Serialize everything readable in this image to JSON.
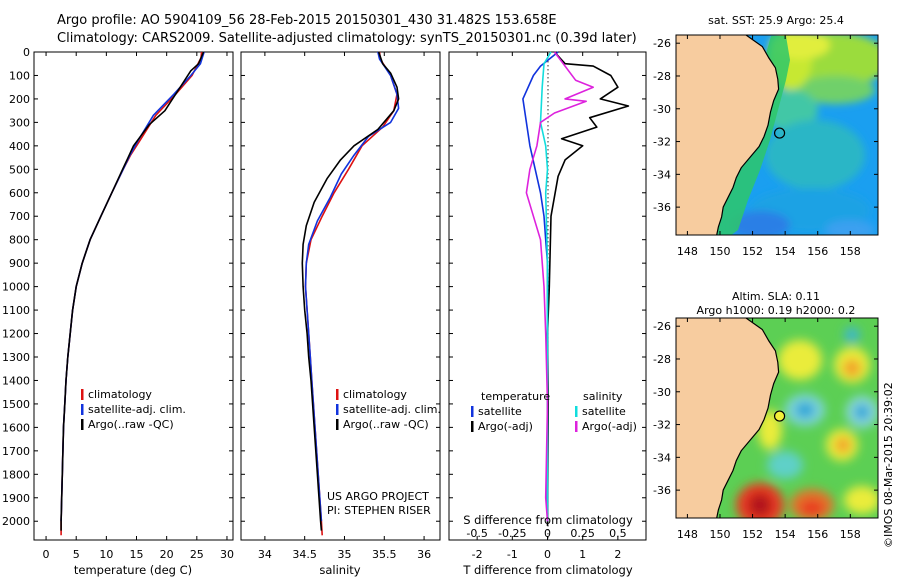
{
  "title": {
    "line1": "Argo profile: AO 5904109_56 28-Feb-2015 20150301_430 31.482S 153.658E",
    "line2": "Climatology: CARS2009. Satellite-adjusted climatology: synTS_20150301.nc (0.39d later)"
  },
  "colors": {
    "climatology": "#dd1111",
    "satellite": "#1133dd",
    "argo": "#000000",
    "argo_adj": "#dd22dd",
    "satellite_s": "#11dddd",
    "land": "#f7cc9f",
    "coast": "#000000"
  },
  "depth_axis": {
    "ticks": [
      0,
      100,
      200,
      300,
      400,
      500,
      600,
      700,
      800,
      900,
      1000,
      1100,
      1200,
      1300,
      1400,
      1500,
      1600,
      1700,
      1800,
      1900,
      2000
    ],
    "range": [
      0,
      2080
    ]
  },
  "chart_data": [
    {
      "id": "temperature",
      "type": "line",
      "xlabel": "temperature (deg C)",
      "xlim": [
        -2,
        31
      ],
      "xticks": [
        0,
        5,
        10,
        15,
        20,
        25,
        30
      ],
      "ylim": [
        2080,
        0
      ],
      "legend": [
        "climatology",
        "satellite-adj. clim.",
        "Argo(..raw -QC)"
      ],
      "series": [
        {
          "name": "climatology",
          "color_key": "climatology",
          "points": [
            [
              25.8,
              0
            ],
            [
              25.7,
              25
            ],
            [
              24.2,
              100
            ],
            [
              21.5,
              180
            ],
            [
              18.2,
              270
            ],
            [
              15.5,
              380
            ],
            [
              14.0,
              440
            ],
            [
              12.8,
              500
            ],
            [
              10.9,
              600
            ],
            [
              9.1,
              700
            ],
            [
              7.3,
              800
            ],
            [
              6.0,
              900
            ],
            [
              5.0,
              1000
            ],
            [
              4.4,
              1100
            ],
            [
              4.0,
              1200
            ],
            [
              3.6,
              1300
            ],
            [
              3.3,
              1400
            ],
            [
              3.1,
              1500
            ],
            [
              2.9,
              1600
            ],
            [
              2.8,
              1700
            ],
            [
              2.7,
              1800
            ],
            [
              2.6,
              1900
            ],
            [
              2.5,
              2000
            ],
            [
              2.5,
              2060
            ]
          ]
        },
        {
          "name": "satellite-adj. clim.",
          "color_key": "satellite",
          "points": [
            [
              26.2,
              0
            ],
            [
              25.6,
              50
            ],
            [
              24.0,
              100
            ],
            [
              21.2,
              180
            ],
            [
              17.8,
              270
            ],
            [
              15.2,
              380
            ],
            [
              13.9,
              440
            ],
            [
              12.8,
              500
            ],
            [
              10.9,
              600
            ],
            [
              9.1,
              700
            ],
            [
              7.3,
              800
            ],
            [
              6.0,
              900
            ],
            [
              5.0,
              1000
            ],
            [
              4.4,
              1100
            ],
            [
              4.0,
              1200
            ],
            [
              3.6,
              1300
            ],
            [
              3.3,
              1400
            ],
            [
              3.1,
              1500
            ],
            [
              2.9,
              1600
            ],
            [
              2.8,
              1700
            ],
            [
              2.7,
              1800
            ],
            [
              2.6,
              1900
            ],
            [
              2.5,
              2000
            ]
          ]
        },
        {
          "name": "Argo(..raw -QC)",
          "color_key": "argo",
          "points": [
            [
              26.1,
              0
            ],
            [
              25.3,
              50
            ],
            [
              24.0,
              80
            ],
            [
              22.0,
              160
            ],
            [
              19.7,
              250
            ],
            [
              17.1,
              310
            ],
            [
              14.5,
              400
            ],
            [
              13.6,
              450
            ],
            [
              12.7,
              500
            ],
            [
              10.9,
              600
            ],
            [
              9.1,
              700
            ],
            [
              7.3,
              800
            ],
            [
              6.0,
              900
            ],
            [
              5.0,
              1000
            ],
            [
              4.4,
              1100
            ],
            [
              4.0,
              1200
            ],
            [
              3.6,
              1300
            ],
            [
              3.3,
              1400
            ],
            [
              3.1,
              1500
            ],
            [
              2.9,
              1600
            ],
            [
              2.8,
              1700
            ],
            [
              2.7,
              1800
            ],
            [
              2.6,
              1900
            ],
            [
              2.5,
              2000
            ],
            [
              2.5,
              2040
            ]
          ]
        }
      ]
    },
    {
      "id": "salinity",
      "type": "line",
      "xlabel": "salinity",
      "xlim": [
        33.7,
        36.2
      ],
      "xticks": [
        34,
        34.5,
        35,
        35.5,
        36
      ],
      "ylim": [
        2080,
        0
      ],
      "legend": [
        "climatology",
        "satellite-adj. clim.",
        "Argo(..raw -QC)"
      ],
      "annotation": [
        "US ARGO PROJECT",
        "PI: STEPHEN RISER"
      ],
      "series": [
        {
          "name": "climatology",
          "color_key": "climatology",
          "points": [
            [
              35.44,
              0
            ],
            [
              35.45,
              30
            ],
            [
              35.58,
              100
            ],
            [
              35.66,
              180
            ],
            [
              35.62,
              250
            ],
            [
              35.48,
              320
            ],
            [
              35.22,
              400
            ],
            [
              35.05,
              500
            ],
            [
              34.87,
              600
            ],
            [
              34.72,
              700
            ],
            [
              34.58,
              800
            ],
            [
              34.52,
              900
            ],
            [
              34.51,
              1000
            ],
            [
              34.53,
              1100
            ],
            [
              34.55,
              1200
            ],
            [
              34.57,
              1300
            ],
            [
              34.59,
              1400
            ],
            [
              34.61,
              1500
            ],
            [
              34.63,
              1600
            ],
            [
              34.65,
              1700
            ],
            [
              34.67,
              1800
            ],
            [
              34.69,
              1900
            ],
            [
              34.71,
              2000
            ],
            [
              34.72,
              2060
            ]
          ]
        },
        {
          "name": "satellite-adj. clim.",
          "color_key": "satellite",
          "points": [
            [
              35.42,
              0
            ],
            [
              35.44,
              30
            ],
            [
              35.58,
              100
            ],
            [
              35.66,
              180
            ],
            [
              35.68,
              240
            ],
            [
              35.58,
              300
            ],
            [
              35.3,
              360
            ],
            [
              35.12,
              440
            ],
            [
              34.96,
              520
            ],
            [
              34.82,
              620
            ],
            [
              34.66,
              720
            ],
            [
              34.55,
              820
            ],
            [
              34.52,
              900
            ],
            [
              34.51,
              1000
            ],
            [
              34.53,
              1100
            ],
            [
              34.55,
              1200
            ],
            [
              34.57,
              1300
            ],
            [
              34.59,
              1400
            ],
            [
              34.61,
              1500
            ],
            [
              34.63,
              1600
            ],
            [
              34.65,
              1700
            ],
            [
              34.67,
              1800
            ],
            [
              34.69,
              1900
            ],
            [
              34.71,
              2000
            ]
          ]
        },
        {
          "name": "Argo(..raw -QC)",
          "color_key": "argo",
          "points": [
            [
              35.43,
              0
            ],
            [
              35.48,
              50
            ],
            [
              35.58,
              90
            ],
            [
              35.66,
              150
            ],
            [
              35.68,
              200
            ],
            [
              35.62,
              250
            ],
            [
              35.42,
              330
            ],
            [
              35.12,
              400
            ],
            [
              34.95,
              460
            ],
            [
              34.78,
              540
            ],
            [
              34.62,
              640
            ],
            [
              34.52,
              740
            ],
            [
              34.48,
              820
            ],
            [
              34.47,
              900
            ],
            [
              34.48,
              1000
            ],
            [
              34.5,
              1100
            ],
            [
              34.53,
              1200
            ],
            [
              34.55,
              1300
            ],
            [
              34.58,
              1400
            ],
            [
              34.6,
              1500
            ],
            [
              34.62,
              1600
            ],
            [
              34.64,
              1700
            ],
            [
              34.66,
              1800
            ],
            [
              34.68,
              1900
            ],
            [
              34.7,
              2000
            ],
            [
              34.71,
              2040
            ]
          ]
        }
      ]
    },
    {
      "id": "difference",
      "type": "line",
      "xlabel": "T difference from climatology",
      "xlabel_s": "S difference from climatology",
      "xlim": [
        -2.8,
        2.8
      ],
      "xticks": [
        -2,
        -1,
        0,
        1,
        2
      ],
      "s_ticks": [
        {
          "label": "-0.5",
          "t": -2
        },
        {
          "label": "-0.25",
          "t": -1
        },
        {
          "label": "0",
          "t": 0
        },
        {
          "label": "0.25",
          "t": 1
        },
        {
          "label": "0.5",
          "t": 2
        }
      ],
      "ylim": [
        2080,
        0
      ],
      "legend_temperature": [
        "temperature",
        "satellite",
        "Argo(-adj)"
      ],
      "legend_salinity": [
        "salinity",
        "satellite",
        "Argo(-adj)"
      ],
      "series": [
        {
          "name": "temperature satellite",
          "color_key": "satellite",
          "points": [
            [
              0.3,
              0
            ],
            [
              -0.2,
              60
            ],
            [
              -0.4,
              100
            ],
            [
              -0.7,
              200
            ],
            [
              -0.6,
              300
            ],
            [
              -0.5,
              400
            ],
            [
              -0.35,
              500
            ],
            [
              -0.2,
              600
            ],
            [
              -0.1,
              700
            ],
            [
              -0.05,
              800
            ],
            [
              0,
              900
            ],
            [
              0,
              2000
            ]
          ]
        },
        {
          "name": "temperature Argo(-adj)",
          "color_key": "argo",
          "points": [
            [
              0.2,
              0
            ],
            [
              0.5,
              50
            ],
            [
              1.3,
              60
            ],
            [
              1.8,
              100
            ],
            [
              2.0,
              150
            ],
            [
              1.5,
              200
            ],
            [
              2.3,
              230
            ],
            [
              1.2,
              280
            ],
            [
              1.4,
              320
            ],
            [
              0.4,
              370
            ],
            [
              1.0,
              400
            ],
            [
              0.5,
              460
            ],
            [
              0.3,
              530
            ],
            [
              0.1,
              700
            ],
            [
              0.05,
              1000
            ],
            [
              0,
              1200
            ],
            [
              0.02,
              1500
            ],
            [
              0,
              2020
            ]
          ]
        },
        {
          "name": "salinity satellite",
          "color_key": "satellite_s",
          "points": [
            [
              0.1,
              0
            ],
            [
              -0.1,
              50
            ],
            [
              -0.15,
              150
            ],
            [
              -0.2,
              300
            ],
            [
              -0.05,
              400
            ],
            [
              0,
              500
            ],
            [
              -0.05,
              600
            ],
            [
              0,
              900
            ],
            [
              0,
              2000
            ]
          ]
        },
        {
          "name": "salinity Argo(-adj)",
          "color_key": "argo_adj",
          "points": [
            [
              0.2,
              0
            ],
            [
              0.8,
              120
            ],
            [
              1.3,
              150
            ],
            [
              0.5,
              200
            ],
            [
              1.1,
              210
            ],
            [
              0.2,
              260
            ],
            [
              -0.2,
              300
            ],
            [
              -0.3,
              400
            ],
            [
              -0.5,
              500
            ],
            [
              -0.6,
              600
            ],
            [
              -0.4,
              700
            ],
            [
              -0.2,
              800
            ],
            [
              -0.1,
              1000
            ],
            [
              -0.05,
              1200
            ],
            [
              0,
              1500
            ],
            [
              -0.05,
              1900
            ],
            [
              0,
              2000
            ]
          ]
        }
      ]
    }
  ],
  "maps": [
    {
      "id": "sst-map",
      "title": "sat. SST: 25.9 Argo: 25.4",
      "xticks": [
        148,
        150,
        152,
        154,
        156,
        158
      ],
      "yticks": [
        -26,
        -28,
        -30,
        -32,
        -34,
        -36
      ],
      "lon": [
        147.3,
        159.7
      ],
      "lat": [
        -37.7,
        -25.5
      ],
      "marker": [
        153.658,
        -31.482
      ],
      "field": "sst"
    },
    {
      "id": "sla-map",
      "title_line1": "Altim. SLA: 0.11",
      "title_line2": "Argo h1000: 0.19 h2000: 0.2",
      "xticks": [
        148,
        150,
        152,
        154,
        156,
        158
      ],
      "yticks": [
        -26,
        -28,
        -30,
        -32,
        -34,
        -36
      ],
      "lon": [
        147.3,
        159.7
      ],
      "lat": [
        -37.7,
        -25.5
      ],
      "marker": [
        153.658,
        -31.482
      ],
      "field": "sla"
    }
  ],
  "footer": "©IMOS 08-Mar-2015 20:39:02"
}
